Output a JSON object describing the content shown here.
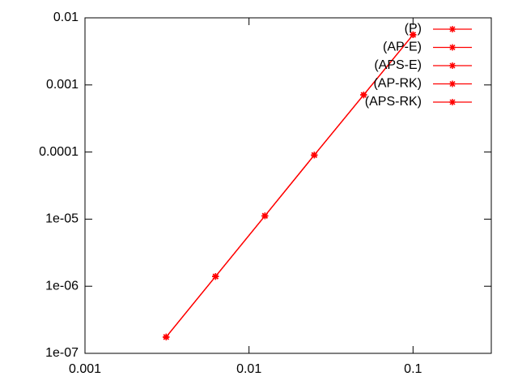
{
  "chart_data": {
    "type": "line",
    "log_x": true,
    "log_y": true,
    "x": [
      0.003125,
      0.00625,
      0.0125,
      0.025,
      0.05,
      0.1
    ],
    "series": [
      {
        "name": "(P)",
        "color": "#ff0000",
        "values": [
          1.75e-07,
          1.4e-06,
          1.12e-05,
          9e-05,
          0.00071,
          0.0056
        ]
      },
      {
        "name": "(AP-E)",
        "color": "#ff0000",
        "values": [
          1.75e-07,
          1.4e-06,
          1.12e-05,
          9e-05,
          0.00071,
          0.0056
        ]
      },
      {
        "name": "(APS-E)",
        "color": "#ff0000",
        "values": [
          1.75e-07,
          1.4e-06,
          1.12e-05,
          9e-05,
          0.00071,
          0.0056
        ]
      },
      {
        "name": "(AP-RK)",
        "color": "#ff0000",
        "values": [
          1.75e-07,
          1.4e-06,
          1.12e-05,
          9e-05,
          0.00071,
          0.0056
        ]
      },
      {
        "name": "(APS-RK)",
        "color": "#ff0000",
        "values": [
          1.75e-07,
          1.4e-06,
          1.12e-05,
          9e-05,
          0.00071,
          0.0056
        ]
      }
    ],
    "xlim": [
      0.001,
      0.3
    ],
    "xticks": [
      0.001,
      0.01,
      0.1
    ],
    "ylim": [
      1e-07,
      0.01
    ],
    "yticks": [
      {
        "value": 1e-07,
        "label": "1e-07"
      },
      {
        "value": 1e-06,
        "label": "1e-06"
      },
      {
        "value": 1e-05,
        "label": "1e-05"
      },
      0.0001,
      0.001,
      0.01
    ],
    "legend": "top-right",
    "grid": false
  }
}
